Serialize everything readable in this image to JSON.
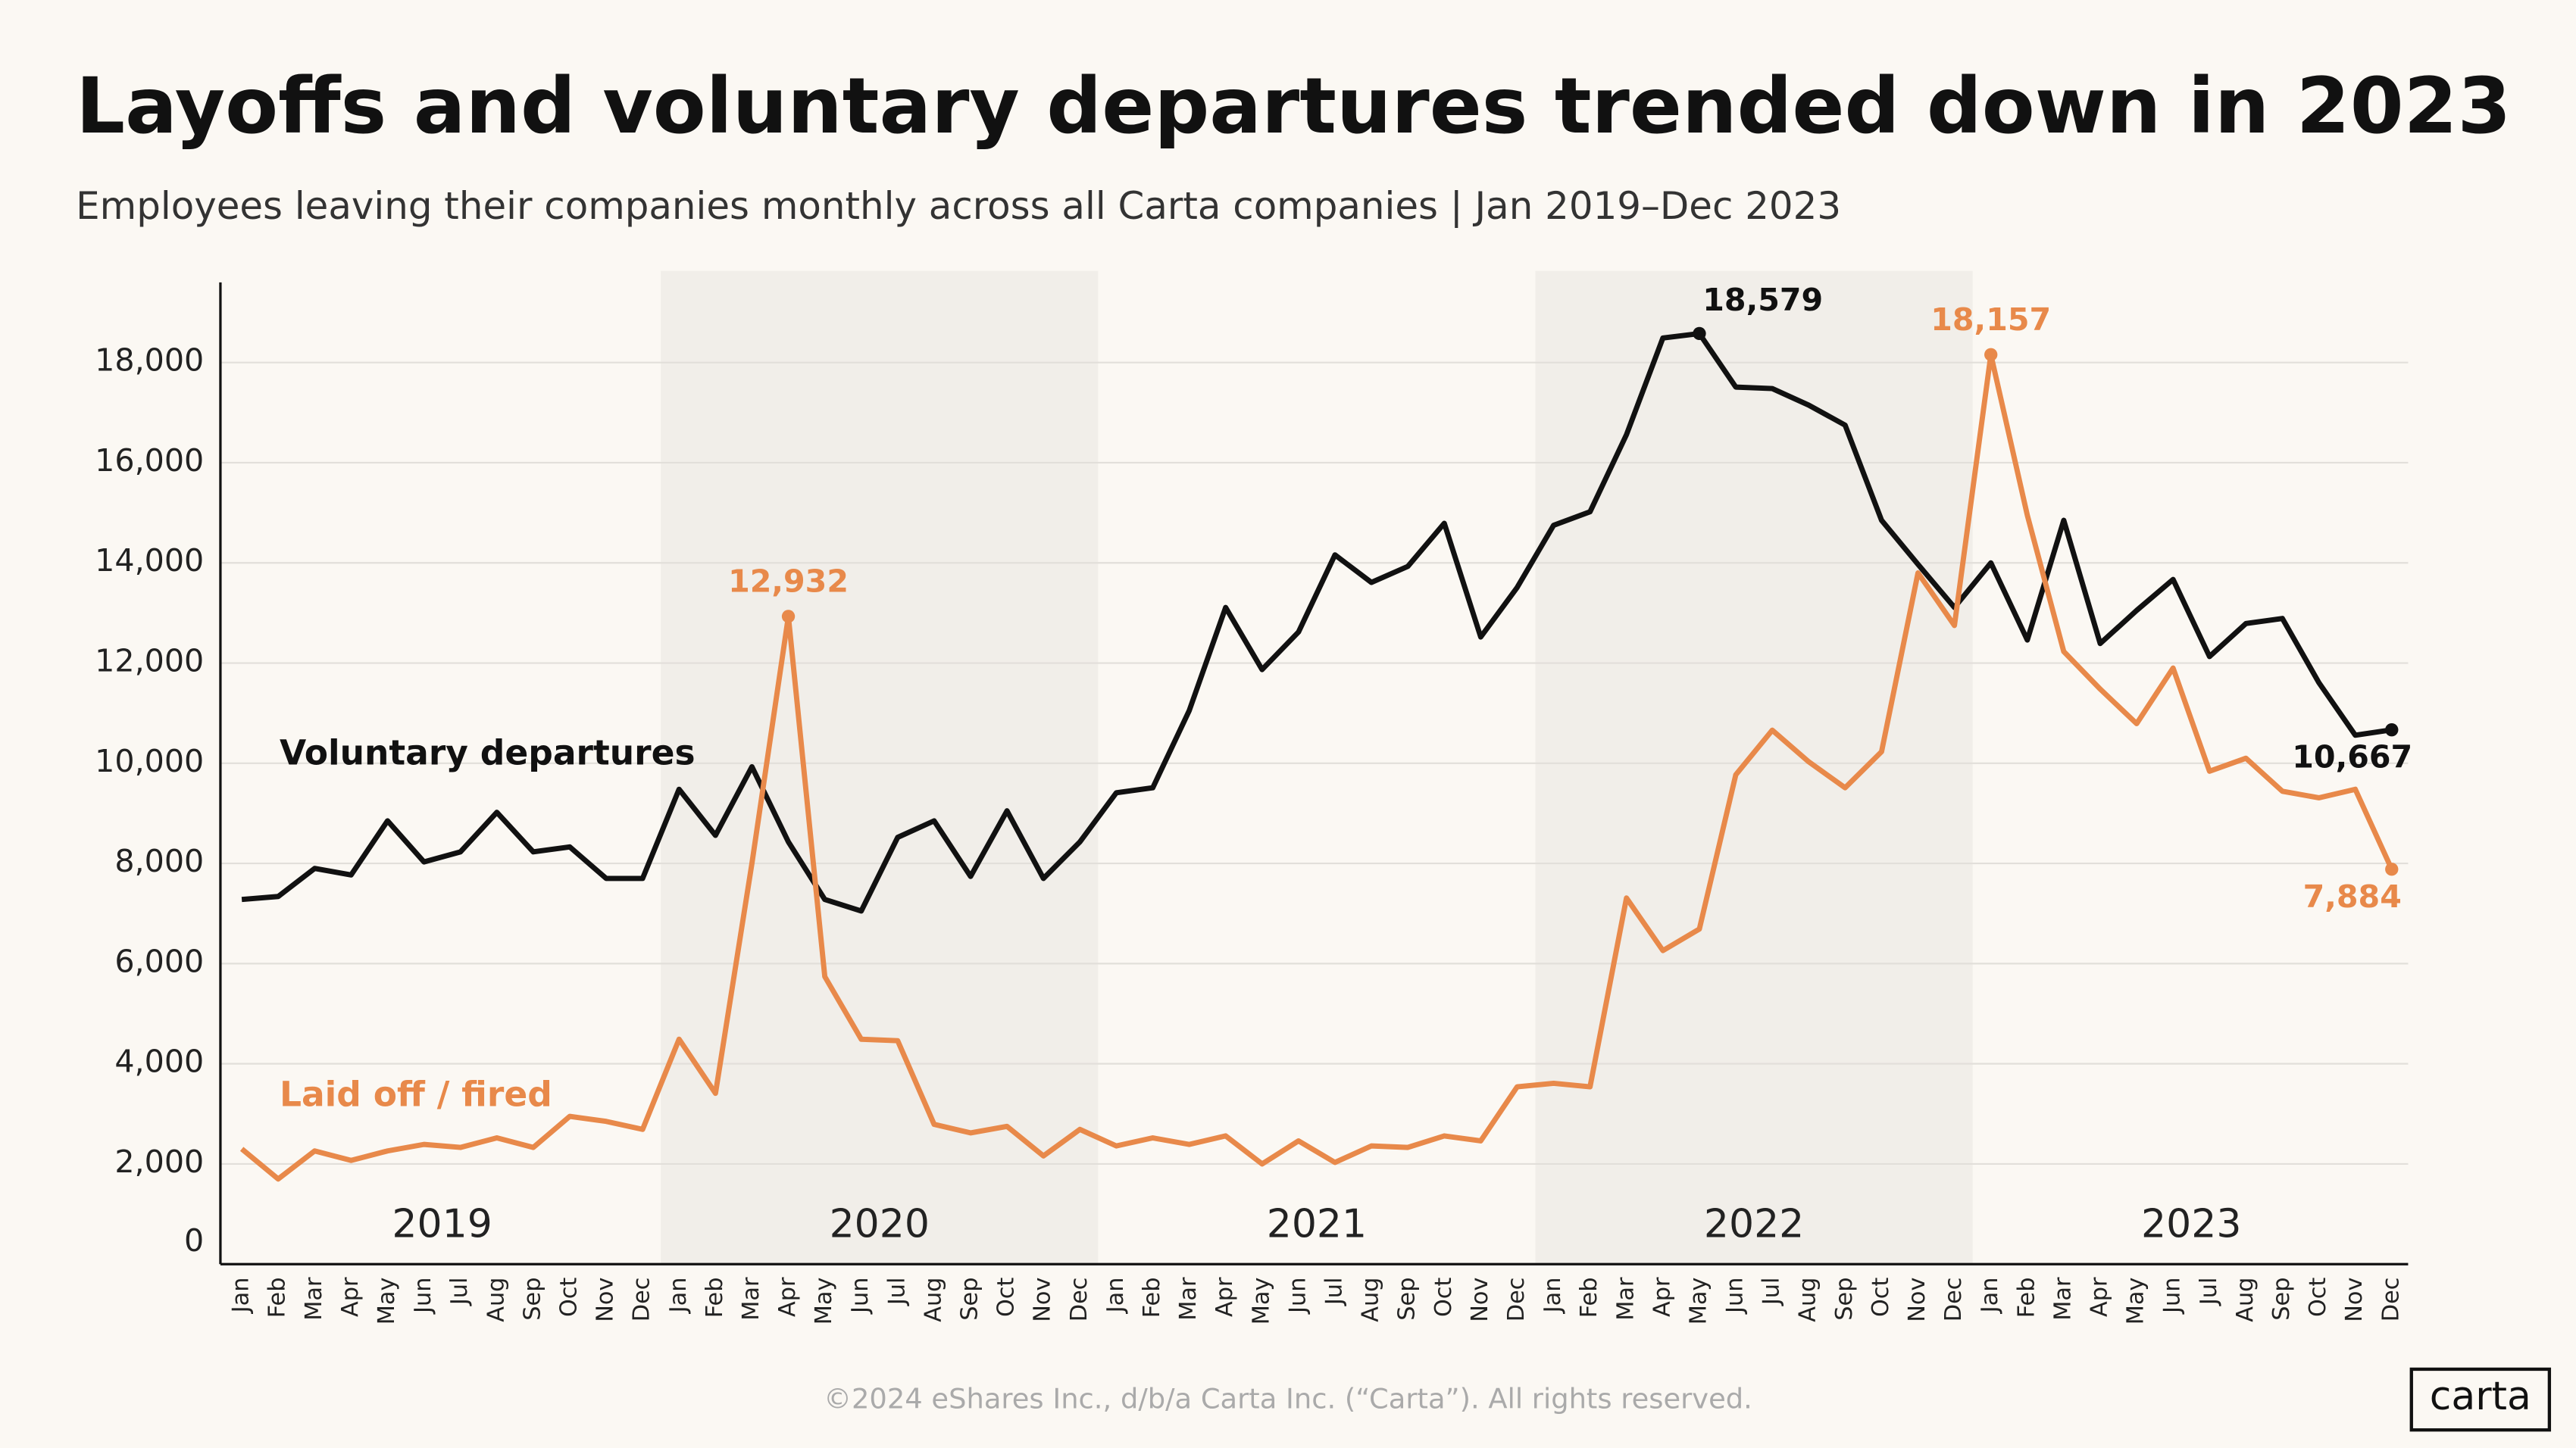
{
  "chart_data": {
    "type": "line",
    "title": "Layoffs and voluntary departures trended down in 2023",
    "subtitle": "Employees leaving their companies monthly across all Carta companies  |  Jan 2019–Dec 2023",
    "footer": "©2024 eShares Inc., d/b/a Carta Inc. (“Carta”). All rights reserved.",
    "logo": "carta",
    "years": [
      "2019",
      "2020",
      "2021",
      "2022",
      "2023"
    ],
    "categories": [
      "Jan",
      "Feb",
      "Mar",
      "Apr",
      "May",
      "Jun",
      "Jul",
      "Aug",
      "Sep",
      "Oct",
      "Nov",
      "Dec",
      "Jan",
      "Feb",
      "Mar",
      "Apr",
      "May",
      "Jun",
      "Jul",
      "Aug",
      "Sep",
      "Oct",
      "Nov",
      "Dec",
      "Jan",
      "Feb",
      "Mar",
      "Apr",
      "May",
      "Jun",
      "Jul",
      "Aug",
      "Sep",
      "Oct",
      "Nov",
      "Dec",
      "Jan",
      "Feb",
      "Mar",
      "Apr",
      "May",
      "Jun",
      "Jul",
      "Aug",
      "Sep",
      "Oct",
      "Nov",
      "Dec",
      "Jan",
      "Feb",
      "Mar",
      "Apr",
      "May",
      "Jun",
      "Jul",
      "Aug",
      "Sep",
      "Oct",
      "Nov",
      "Dec"
    ],
    "series": [
      {
        "name": "Voluntary departures",
        "color": "#111111",
        "values": [
          7280,
          7340,
          7900,
          7770,
          8850,
          8030,
          8230,
          9020,
          8230,
          8330,
          7700,
          7700,
          9480,
          8560,
          9930,
          8430,
          7280,
          7050,
          8520,
          8850,
          7740,
          9050,
          7700,
          8430,
          9410,
          9510,
          11050,
          13110,
          11870,
          12620,
          14160,
          13610,
          13930,
          14790,
          12520,
          13510,
          14750,
          15020,
          16560,
          18490,
          18579,
          17510,
          17480,
          17150,
          16750,
          14850,
          13970,
          13110,
          14000,
          12460,
          14850,
          12390,
          13050,
          13670,
          12130,
          12790,
          12890,
          11610,
          10560,
          10667
        ],
        "value_labels": [
          null,
          null,
          null,
          null,
          null,
          null,
          null,
          null,
          null,
          null,
          null,
          null,
          null,
          null,
          null,
          null,
          null,
          null,
          null,
          null,
          null,
          null,
          null,
          null,
          null,
          null,
          null,
          null,
          null,
          null,
          null,
          null,
          null,
          null,
          null,
          null,
          null,
          null,
          null,
          null,
          "18,579",
          null,
          null,
          null,
          null,
          null,
          null,
          null,
          null,
          null,
          null,
          null,
          null,
          null,
          null,
          null,
          null,
          null,
          null,
          "10,667"
        ]
      },
      {
        "name": "Laid off / fired",
        "color": "#e8894a",
        "values": [
          2300,
          1700,
          2260,
          2070,
          2260,
          2390,
          2330,
          2520,
          2330,
          2950,
          2850,
          2690,
          4490,
          3410,
          8000,
          12932,
          5740,
          4490,
          4460,
          2790,
          2620,
          2750,
          2160,
          2690,
          2360,
          2520,
          2390,
          2560,
          2000,
          2460,
          2030,
          2360,
          2330,
          2560,
          2460,
          3540,
          3610,
          3540,
          7310,
          6260,
          6690,
          9770,
          10660,
          10030,
          9510,
          10230,
          13800,
          12750,
          18157,
          14950,
          12230,
          11480,
          10790,
          11900,
          9840,
          10100,
          9440,
          9310,
          9480,
          7884
        ],
        "value_labels": [
          null,
          null,
          null,
          null,
          null,
          null,
          null,
          null,
          null,
          null,
          null,
          null,
          null,
          null,
          null,
          "12,932",
          null,
          null,
          null,
          null,
          null,
          null,
          null,
          null,
          null,
          null,
          null,
          null,
          null,
          null,
          null,
          null,
          null,
          null,
          null,
          null,
          null,
          null,
          null,
          null,
          null,
          null,
          null,
          null,
          null,
          null,
          null,
          null,
          "18,157",
          null,
          null,
          null,
          null,
          null,
          null,
          null,
          null,
          null,
          null,
          "7,884"
        ]
      }
    ],
    "ylim": [
      0,
      19600
    ],
    "yticks": [
      0,
      {
        "value": 2000,
        "label": "2,000"
      },
      {
        "value": 4000,
        "label": "4,000"
      },
      {
        "value": 6000,
        "label": "6,000"
      },
      {
        "value": 8000,
        "label": "8,000"
      },
      {
        "value": 10000,
        "label": "10,000"
      },
      {
        "value": 12000,
        "label": "12,000"
      },
      {
        "value": 14000,
        "label": "14,000"
      },
      {
        "value": 16000,
        "label": "16,000"
      },
      {
        "value": 18000,
        "label": "18,000"
      }
    ],
    "grid": true
  }
}
